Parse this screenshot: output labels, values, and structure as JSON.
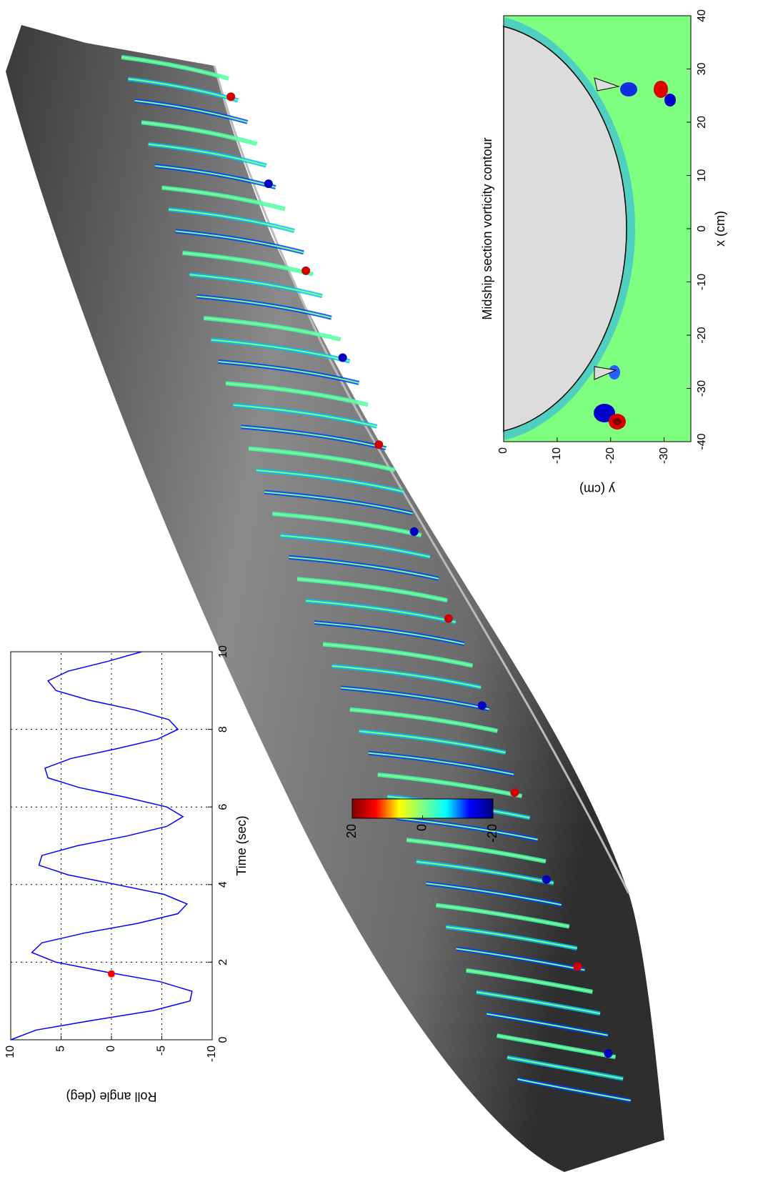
{
  "chart_data": [
    {
      "type": "line",
      "xlabel": "Time (sec)",
      "ylabel": "Roll angle (deg)",
      "x": [
        0,
        0.25,
        0.5,
        0.75,
        1,
        1.25,
        1.5,
        1.75,
        2,
        2.25,
        2.5,
        2.75,
        3,
        3.25,
        3.5,
        3.75,
        4,
        4.25,
        4.5,
        4.75,
        5,
        5.25,
        5.5,
        5.75,
        6,
        6.25,
        6.5,
        6.75,
        7,
        7.25,
        7.5,
        7.75,
        8,
        8.25,
        8.5,
        8.75,
        9,
        9.25,
        9.5,
        9.75,
        10
      ],
      "values": [
        10,
        7.5,
        1.9,
        -4.1,
        -7.8,
        -8.0,
        -4.8,
        0.6,
        5.5,
        7.9,
        6.9,
        2.7,
        -2.6,
        -6.6,
        -7.5,
        -5.2,
        -0.5,
        4.3,
        7.2,
        6.9,
        3.4,
        -1.5,
        -5.5,
        -7.1,
        -5.5,
        -1.4,
        3.2,
        6.3,
        6.6,
        4.0,
        -0.5,
        -4.6,
        -6.6,
        -5.7,
        -2.3,
        2.2,
        5.5,
        6.3,
        4.3,
        0.4,
        -3.0
      ],
      "color": "#0000ff",
      "highlight": {
        "x": 1.7,
        "y": 0,
        "color": "#ff0000"
      },
      "xlim": [
        0,
        10
      ],
      "xticks": [
        0,
        2,
        4,
        6,
        8,
        10
      ],
      "ylim": [
        -10,
        10
      ],
      "yticks": [
        -10,
        -5,
        0,
        5,
        10
      ],
      "grid": true
    },
    {
      "type": "colorbar",
      "colormap": "jet",
      "ylim": [
        -20,
        20
      ],
      "yticks": [
        -20,
        0,
        20
      ]
    },
    {
      "type": "contour",
      "title": "Midship section vorticity contour",
      "xlabel": "x (cm)",
      "ylabel": "y (cm)",
      "xlim": [
        -40,
        40
      ],
      "xticks": [
        -40,
        -30,
        -20,
        -10,
        0,
        10,
        20,
        30,
        40
      ],
      "ylim": [
        -35,
        0
      ],
      "yticks": [
        -30,
        -20,
        -10,
        0
      ]
    }
  ]
}
